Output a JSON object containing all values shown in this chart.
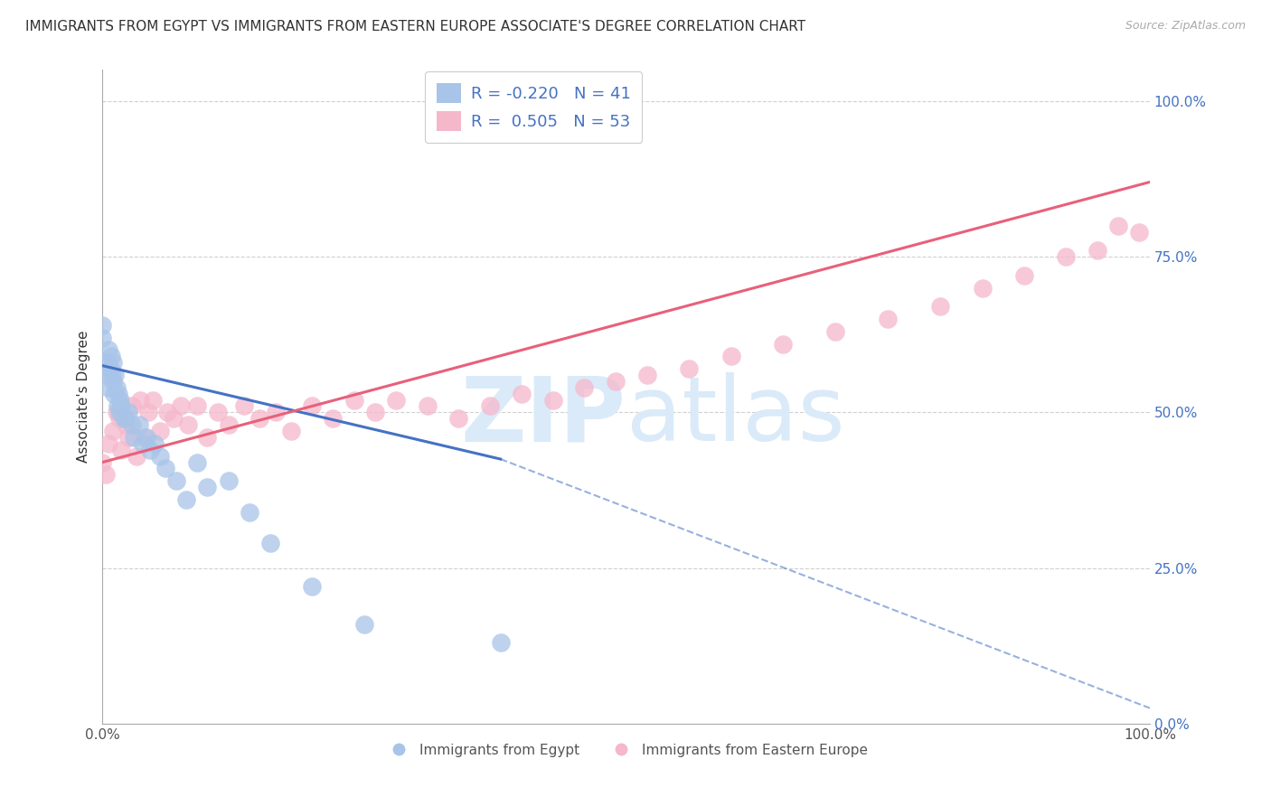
{
  "title": "IMMIGRANTS FROM EGYPT VS IMMIGRANTS FROM EASTERN EUROPE ASSOCIATE'S DEGREE CORRELATION CHART",
  "source": "Source: ZipAtlas.com",
  "ylabel": "Associate's Degree",
  "blue_R": -0.22,
  "blue_N": 41,
  "pink_R": 0.505,
  "pink_N": 53,
  "blue_color": "#a8c4e8",
  "pink_color": "#f5b8cb",
  "blue_line_color": "#4472c4",
  "pink_line_color": "#e8607a",
  "watermark_color": "#daeaf8",
  "grid_color": "#d0d0d0",
  "background_color": "#ffffff",
  "title_fontsize": 11,
  "source_fontsize": 9,
  "label_fontsize": 11,
  "legend_fontsize": 13,
  "blue_scatter_x": [
    0.0,
    0.0,
    0.004,
    0.005,
    0.006,
    0.006,
    0.007,
    0.008,
    0.009,
    0.01,
    0.01,
    0.011,
    0.012,
    0.013,
    0.014,
    0.015,
    0.016,
    0.017,
    0.018,
    0.02,
    0.022,
    0.025,
    0.028,
    0.03,
    0.035,
    0.038,
    0.042,
    0.045,
    0.05,
    0.055,
    0.06,
    0.07,
    0.08,
    0.09,
    0.1,
    0.12,
    0.14,
    0.16,
    0.2,
    0.25,
    0.38
  ],
  "blue_scatter_y": [
    0.62,
    0.64,
    0.56,
    0.58,
    0.54,
    0.6,
    0.57,
    0.59,
    0.56,
    0.55,
    0.58,
    0.53,
    0.56,
    0.54,
    0.51,
    0.53,
    0.5,
    0.52,
    0.51,
    0.49,
    0.49,
    0.5,
    0.48,
    0.46,
    0.48,
    0.45,
    0.46,
    0.44,
    0.45,
    0.43,
    0.41,
    0.39,
    0.36,
    0.42,
    0.38,
    0.39,
    0.34,
    0.29,
    0.22,
    0.16,
    0.13
  ],
  "pink_scatter_x": [
    0.0,
    0.003,
    0.006,
    0.01,
    0.013,
    0.016,
    0.018,
    0.022,
    0.025,
    0.028,
    0.032,
    0.036,
    0.04,
    0.044,
    0.048,
    0.055,
    0.062,
    0.068,
    0.075,
    0.082,
    0.09,
    0.1,
    0.11,
    0.12,
    0.135,
    0.15,
    0.165,
    0.18,
    0.2,
    0.22,
    0.24,
    0.26,
    0.28,
    0.31,
    0.34,
    0.37,
    0.4,
    0.43,
    0.46,
    0.49,
    0.52,
    0.56,
    0.6,
    0.65,
    0.7,
    0.75,
    0.8,
    0.84,
    0.88,
    0.92,
    0.95,
    0.97,
    0.99
  ],
  "pink_scatter_y": [
    0.42,
    0.4,
    0.45,
    0.47,
    0.5,
    0.49,
    0.44,
    0.48,
    0.46,
    0.51,
    0.43,
    0.52,
    0.46,
    0.5,
    0.52,
    0.47,
    0.5,
    0.49,
    0.51,
    0.48,
    0.51,
    0.46,
    0.5,
    0.48,
    0.51,
    0.49,
    0.5,
    0.47,
    0.51,
    0.49,
    0.52,
    0.5,
    0.52,
    0.51,
    0.49,
    0.51,
    0.53,
    0.52,
    0.54,
    0.55,
    0.56,
    0.57,
    0.59,
    0.61,
    0.63,
    0.65,
    0.67,
    0.7,
    0.72,
    0.75,
    0.76,
    0.8,
    0.79
  ],
  "xlim": [
    0.0,
    1.0
  ],
  "ylim": [
    0.0,
    1.05
  ],
  "blue_line_x_start": 0.0,
  "blue_line_x_solid_end": 0.38,
  "blue_line_x_dashed_end": 1.0,
  "blue_line_y_at_0": 0.575,
  "blue_line_y_at_038": 0.425,
  "blue_line_y_at_1": 0.025,
  "pink_line_x_start": 0.0,
  "pink_line_x_end": 1.0,
  "pink_line_y_at_0": 0.42,
  "pink_line_y_at_1": 0.87
}
